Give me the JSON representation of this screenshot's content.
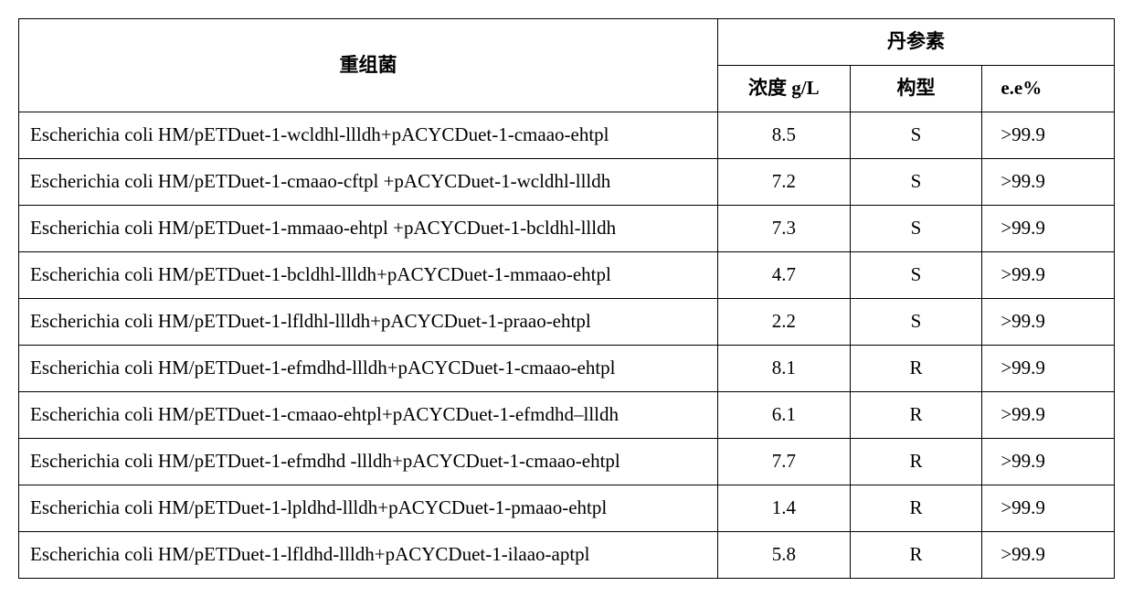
{
  "table": {
    "header": {
      "strain": "重组菌",
      "group": "丹参素",
      "conc": "浓度 g/L",
      "config": "构型",
      "ee": "e.e%"
    },
    "rows": [
      {
        "strain": "Escherichia coli HM/pETDuet-1-wcldhl-llldh+pACYCDuet-1-cmaao-ehtpl",
        "conc": "8.5",
        "config": "S",
        "ee": ">99.9"
      },
      {
        "strain": "Escherichia coli HM/pETDuet-1-cmaao-cftpl +pACYCDuet-1-wcldhl-llldh",
        "conc": "7.2",
        "config": "S",
        "ee": ">99.9"
      },
      {
        "strain": "Escherichia coli HM/pETDuet-1-mmaao-ehtpl +pACYCDuet-1-bcldhl-llldh",
        "conc": "7.3",
        "config": "S",
        "ee": ">99.9"
      },
      {
        "strain": "Escherichia coli HM/pETDuet-1-bcldhl-llldh+pACYCDuet-1-mmaao-ehtpl",
        "conc": "4.7",
        "config": "S",
        "ee": ">99.9"
      },
      {
        "strain": "Escherichia coli HM/pETDuet-1-lfldhl-llldh+pACYCDuet-1-praao-ehtpl",
        "conc": "2.2",
        "config": "S",
        "ee": ">99.9"
      },
      {
        "strain": "Escherichia coli HM/pETDuet-1-efmdhd-llldh+pACYCDuet-1-cmaao-ehtpl",
        "conc": "8.1",
        "config": "R",
        "ee": ">99.9"
      },
      {
        "strain": "Escherichia coli HM/pETDuet-1-cmaao-ehtpl+pACYCDuet-1-efmdhd–llldh",
        "conc": "6.1",
        "config": "R",
        "ee": ">99.9"
      },
      {
        "strain": "Escherichia coli HM/pETDuet-1-efmdhd -llldh+pACYCDuet-1-cmaao-ehtpl",
        "conc": "7.7",
        "config": "R",
        "ee": ">99.9"
      },
      {
        "strain": "Escherichia coli HM/pETDuet-1-lpldhd-llldh+pACYCDuet-1-pmaao-ehtpl",
        "conc": "1.4",
        "config": "R",
        "ee": ">99.9"
      },
      {
        "strain": "Escherichia coli HM/pETDuet-1-lfldhd-llldh+pACYCDuet-1-ilaao-aptpl",
        "conc": "5.8",
        "config": "R",
        "ee": ">99.9"
      }
    ]
  }
}
